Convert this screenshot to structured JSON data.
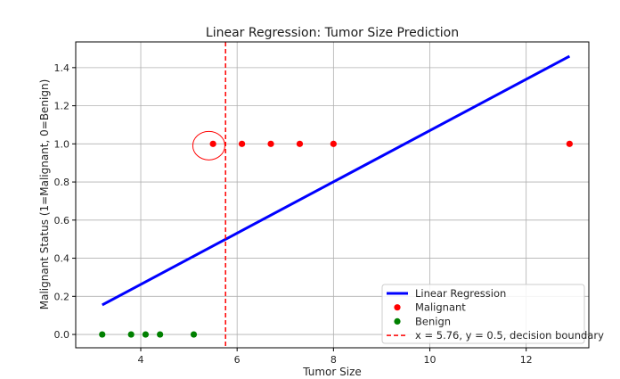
{
  "chart_data": {
    "type": "scatter",
    "title": "Linear Regression: Tumor Size Prediction",
    "xlabel": "Tumor Size",
    "ylabel": "Malignant Status (1=Malignant, 0=Benign)",
    "xlim": [
      2.65,
      13.3
    ],
    "ylim": [
      -0.07,
      1.535
    ],
    "xticks": [
      4,
      6,
      8,
      10,
      12
    ],
    "yticks": [
      0.0,
      0.2,
      0.4,
      0.6,
      0.8,
      1.0,
      1.2,
      1.4
    ],
    "xtick_labels": [
      "4",
      "6",
      "8",
      "10",
      "12"
    ],
    "ytick_labels": [
      "0.0",
      "0.2",
      "0.4",
      "0.6",
      "0.8",
      "1.0",
      "1.2",
      "1.4"
    ],
    "grid": true,
    "series": [
      {
        "name": "Linear Regression",
        "kind": "line",
        "color": "#0000ff",
        "x": [
          3.2,
          12.9
        ],
        "y": [
          0.155,
          1.46
        ]
      },
      {
        "name": "Malignant",
        "kind": "scatter",
        "color": "#ff0000",
        "x": [
          5.5,
          6.1,
          6.7,
          7.3,
          8.0,
          12.9
        ],
        "y": [
          1,
          1,
          1,
          1,
          1,
          1
        ]
      },
      {
        "name": "Benign",
        "kind": "scatter",
        "color": "#008000",
        "x": [
          3.2,
          3.8,
          4.1,
          4.4,
          5.1
        ],
        "y": [
          0,
          0,
          0,
          0,
          0
        ]
      },
      {
        "name": "x = 5.76, y = 0.5, decision boundary",
        "kind": "vline",
        "color": "#ff0000",
        "x": 5.76
      }
    ],
    "annotations": [
      {
        "type": "circle-highlight",
        "x": 5.45,
        "y": 1.0,
        "color": "#ff0000"
      }
    ],
    "legend_position": "lower-right"
  }
}
